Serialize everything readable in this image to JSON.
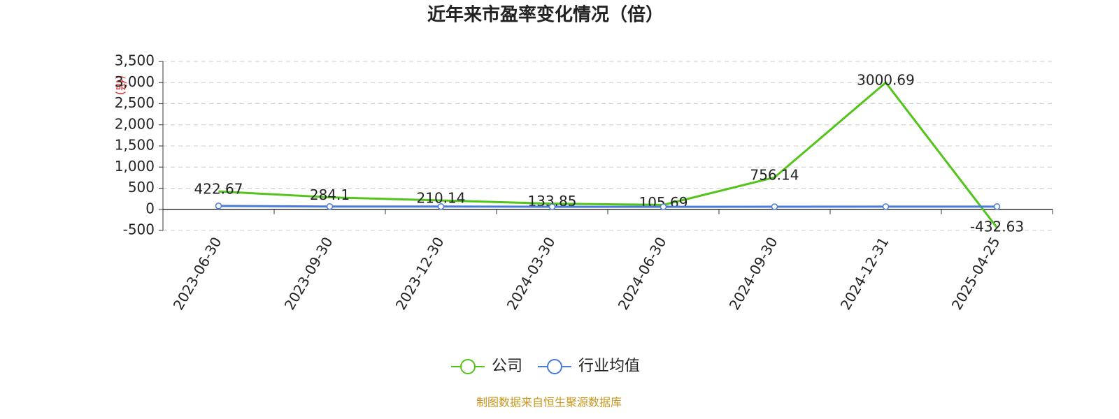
{
  "chart_data": {
    "type": "line",
    "title": "近年来市盈率变化情况（倍）",
    "y_label": "(倍)",
    "categories": [
      "2023-06-30",
      "2023-09-30",
      "2023-12-30",
      "2024-03-30",
      "2024-06-30",
      "2024-09-30",
      "2024-12-31",
      "2025-04-25"
    ],
    "series": [
      {
        "name": "公司",
        "color": "#52c41a",
        "values": [
          422.67,
          284.1,
          210.14,
          133.85,
          105.69,
          756.14,
          3000.69,
          -432.63
        ],
        "labels": true,
        "markers": false
      },
      {
        "name": "行业均值",
        "color": "#4a7bd8",
        "values": [
          80,
          66,
          66,
          60,
          60,
          62,
          65,
          65
        ],
        "labels": false,
        "markers": true
      }
    ],
    "ylim": [
      -500,
      3500
    ],
    "yticks": [
      -500,
      0,
      500,
      {
        "value": 1000,
        "label": "1,000"
      },
      {
        "value": 1500,
        "label": "1,500"
      },
      {
        "value": 2000,
        "label": "2,000"
      },
      {
        "value": 2500,
        "label": "2,500"
      },
      {
        "value": 3000,
        "label": "3,000"
      },
      {
        "value": 3500,
        "label": "3,500"
      }
    ],
    "grid": true,
    "legend": "bottom",
    "source": "制图数据来自恒生聚源数据库"
  }
}
